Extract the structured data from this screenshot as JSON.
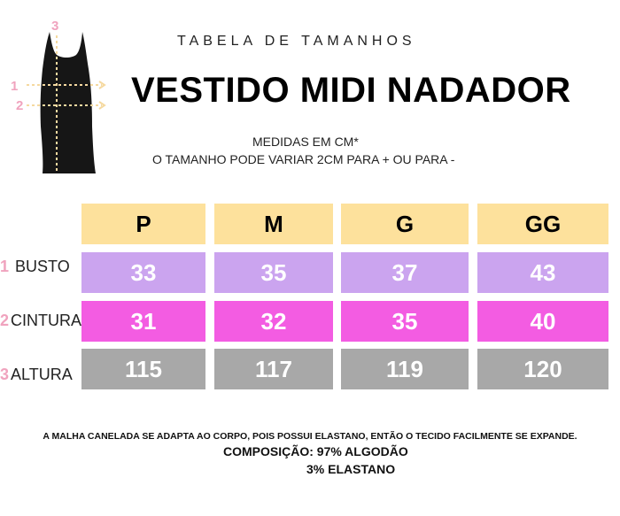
{
  "header": {
    "subtitle": "TABELA DE TAMANHOS",
    "title": "VESTIDO MIDI NADADOR",
    "note_line1": "MEDIDAS EM CM*",
    "note_line2": "O TAMANHO PODE VARIAR 2CM PARA + OU PARA -"
  },
  "figure": {
    "markers": [
      "1",
      "2",
      "3"
    ],
    "colors": {
      "dress": "#161616",
      "marker": "#f0a3be",
      "arrow": "#f5d9a0"
    }
  },
  "table": {
    "sizes": [
      "P",
      "M",
      "G",
      "GG"
    ],
    "rows": [
      {
        "num": "1",
        "label": " BUSTO",
        "values": [
          "33",
          "35",
          "37",
          "43"
        ]
      },
      {
        "num": "2",
        "label": "CINTURA",
        "values": [
          "31",
          "32",
          "35",
          "40"
        ]
      },
      {
        "num": "3",
        "label": "ALTURA",
        "values": [
          "115",
          "117",
          "119",
          "120"
        ]
      }
    ],
    "colors": {
      "header": "#fde19c",
      "row1": "#cba4ef",
      "row2": "#f35ce2",
      "row3": "#a8a8a8"
    }
  },
  "footer": {
    "line1": "A MALHA CANELADA SE ADAPTA AO CORPO, POIS POSSUI ELASTANO, ENTÃO O TECIDO FACILMENTE SE EXPANDE.",
    "line2": "COMPOSIÇÃO: 97% ALGODÃO",
    "line3": "3% ELASTANO"
  }
}
